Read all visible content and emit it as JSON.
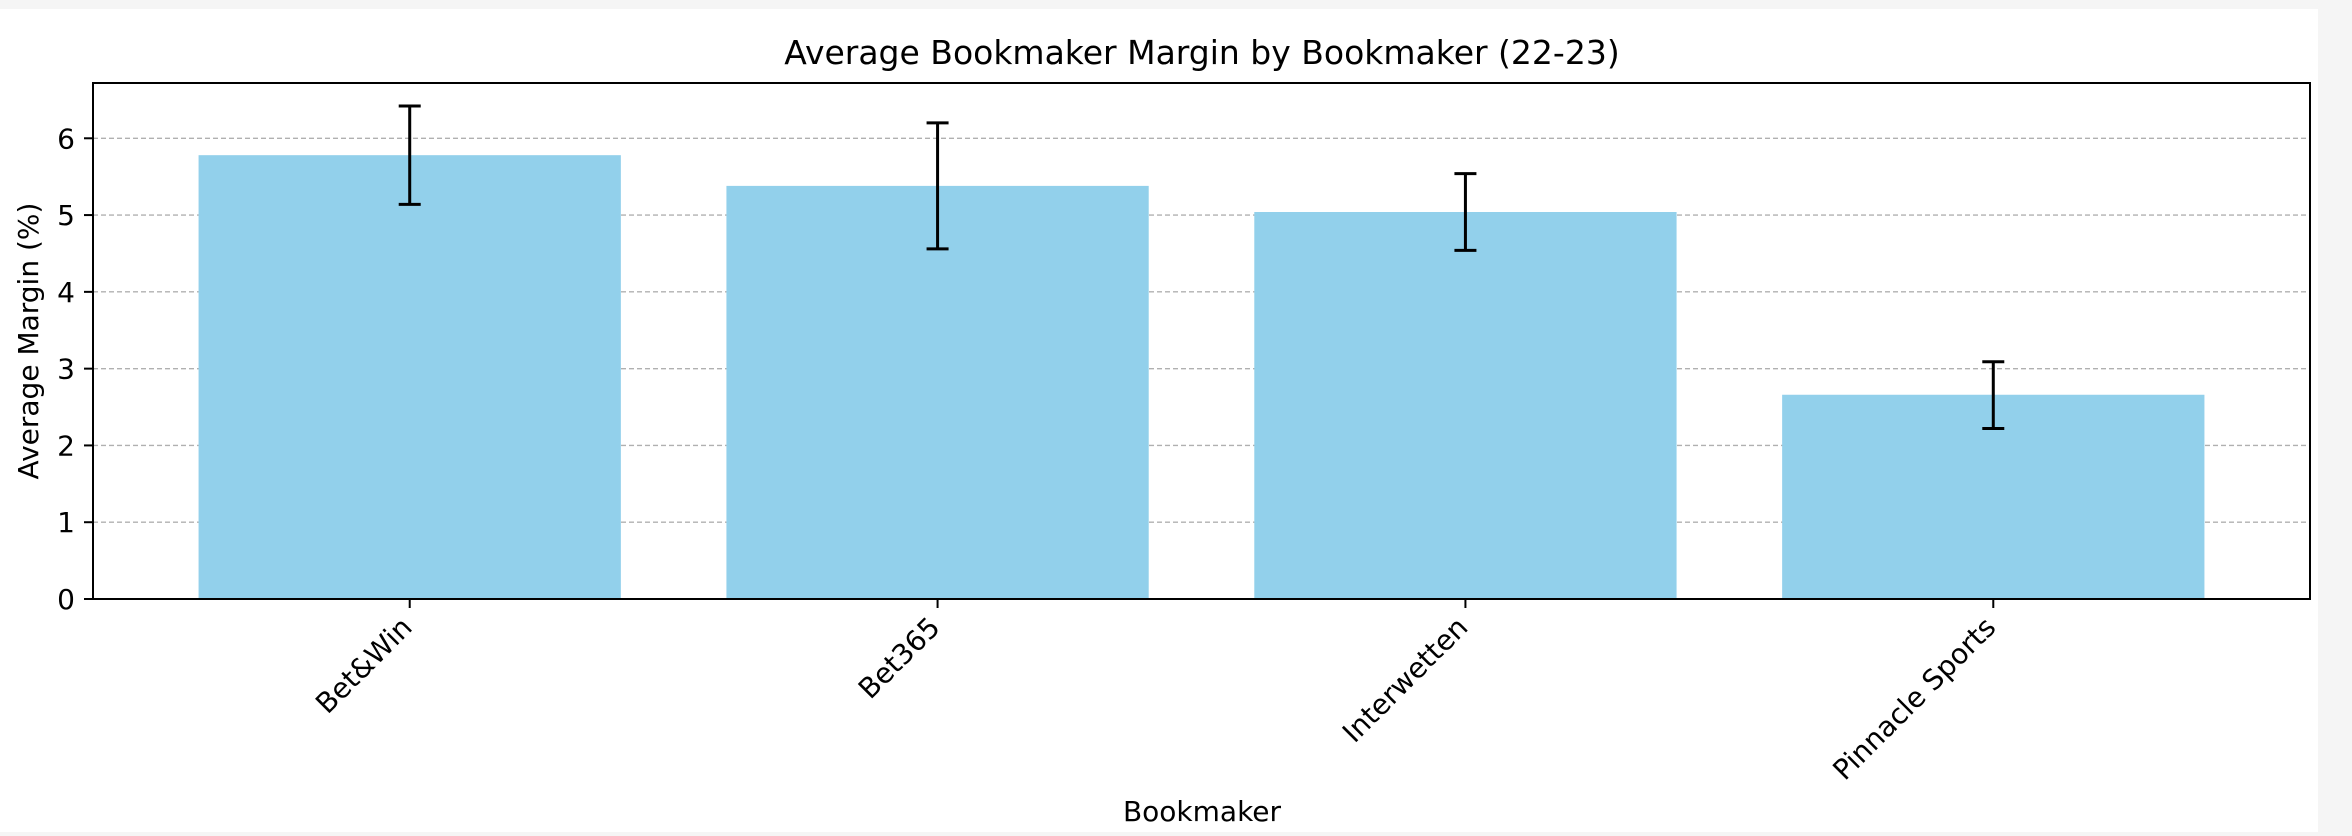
{
  "chart_data": {
    "type": "bar",
    "title": "Average Bookmaker Margin by Bookmaker (22-23)",
    "xlabel": "Bookmaker",
    "ylabel": "Average Margin (%)",
    "categories": [
      "Bet&Win",
      "Bet365",
      "Interwetten",
      "Pinnacle Sports"
    ],
    "values": [
      5.78,
      5.38,
      5.04,
      2.66
    ],
    "error_low": [
      5.14,
      4.56,
      4.54,
      2.22
    ],
    "error_high": [
      6.42,
      6.2,
      5.54,
      3.09
    ],
    "ylim": [
      0,
      6.72
    ],
    "yticks": [
      0,
      1,
      2,
      3,
      4,
      5,
      6
    ],
    "grid": "y-dashed",
    "legend": "none",
    "bar_color": "#92d0eb",
    "error_color": "#000000",
    "grid_color": "#b0b0b0"
  }
}
